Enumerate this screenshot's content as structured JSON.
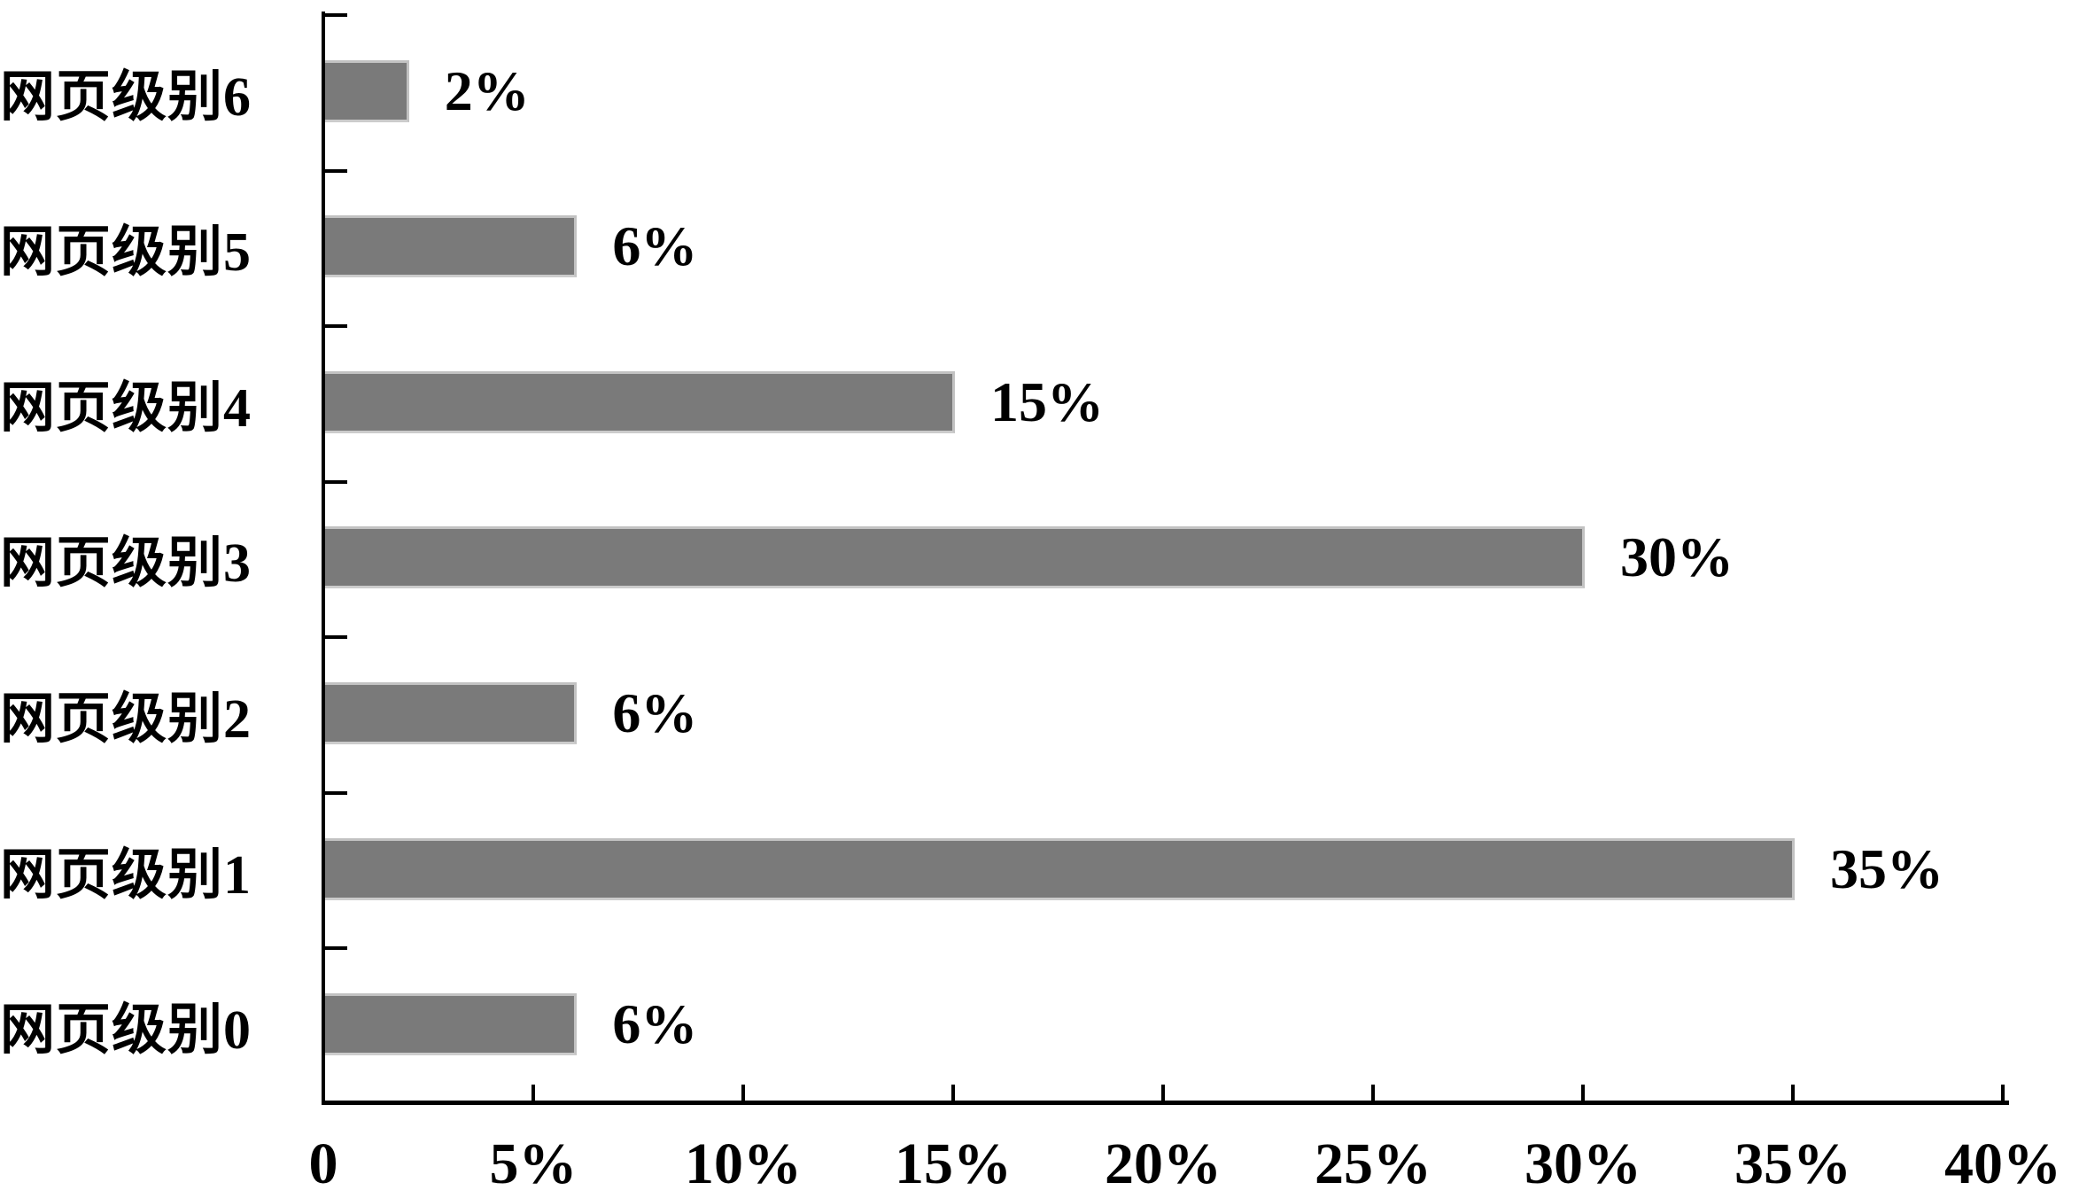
{
  "chart_data": {
    "type": "bar",
    "orientation": "horizontal",
    "title": "",
    "categories": [
      "网页级别6",
      "网页级别5",
      "网页级别4",
      "网页级别3",
      "网页级别2",
      "网页级别1",
      "网页级别0"
    ],
    "values": [
      2,
      6,
      15,
      30,
      6,
      35,
      6
    ],
    "value_labels": [
      "2%",
      "6%",
      "15%",
      "30%",
      "6%",
      "35%",
      "6%"
    ],
    "x_ticks": [
      "0",
      "5%",
      "10%",
      "15%",
      "20%",
      "25%",
      "30%",
      "35%",
      "40%"
    ],
    "xlim": [
      0,
      40
    ],
    "xlabel": "",
    "ylabel": "",
    "grid": false,
    "legend": false,
    "colors": {
      "bar_fill": "#7a7a7a",
      "bar_edge": "#c2c2c2",
      "axis": "#000000",
      "text": "#000000",
      "background": "#ffffff"
    }
  }
}
